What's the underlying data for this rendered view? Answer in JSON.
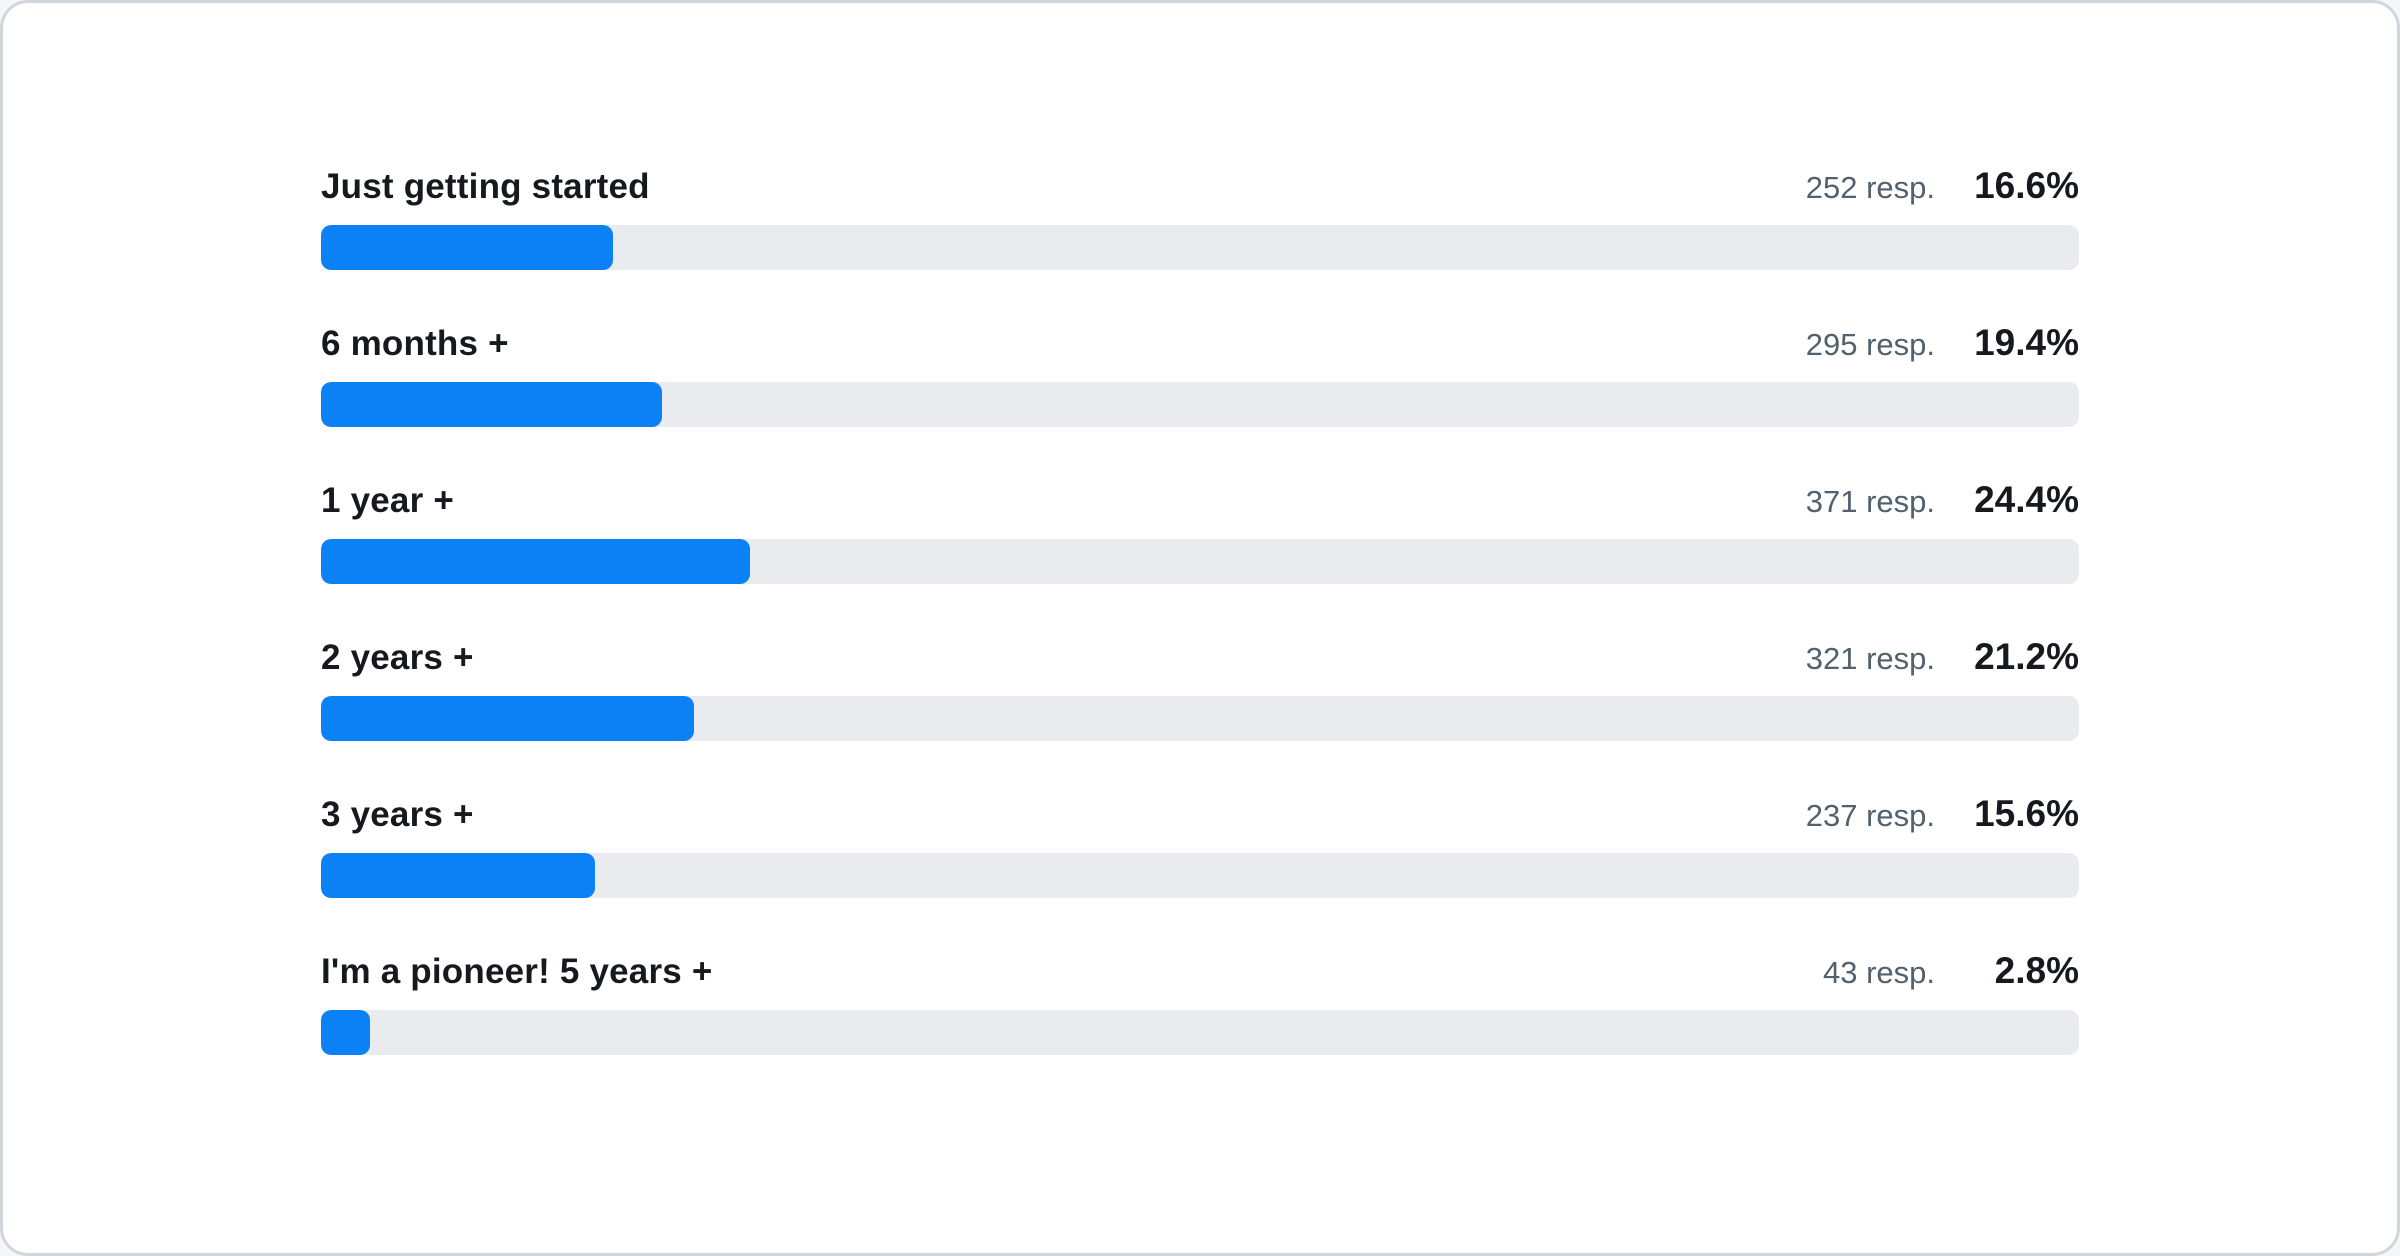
{
  "colors": {
    "bar_fill": "#0b81f5",
    "bar_track": "#e9ebee",
    "label_text": "#16191d",
    "muted_text": "#52616e",
    "card_border": "#cfd6dc",
    "card_background": "#ffffff"
  },
  "chart_data": {
    "type": "bar",
    "orientation": "horizontal",
    "title": "",
    "xlabel": "",
    "ylabel": "",
    "xlim": [
      0,
      100
    ],
    "unit": "%",
    "categories": [
      "Just getting started",
      "6 months +",
      "1 year +",
      "2 years +",
      "3 years +",
      "I'm a pioneer! 5 years +"
    ],
    "values": [
      16.6,
      19.4,
      24.4,
      21.2,
      15.6,
      2.8
    ],
    "respondent_counts": [
      252,
      295,
      371,
      321,
      237,
      43
    ],
    "rows": [
      {
        "label": "Just getting started",
        "responses_label": "252 resp.",
        "percent_label": "16.6%",
        "percent": 16.6
      },
      {
        "label": "6 months +",
        "responses_label": "295 resp.",
        "percent_label": "19.4%",
        "percent": 19.4
      },
      {
        "label": "1 year +",
        "responses_label": "371 resp.",
        "percent_label": "24.4%",
        "percent": 24.4
      },
      {
        "label": "2 years +",
        "responses_label": "321 resp.",
        "percent_label": "21.2%",
        "percent": 21.2
      },
      {
        "label": "3 years +",
        "responses_label": "237 resp.",
        "percent_label": "15.6%",
        "percent": 15.6
      },
      {
        "label": "I'm a pioneer! 5 years +",
        "responses_label": "43 resp.",
        "percent_label": "2.8%",
        "percent": 2.8
      }
    ]
  }
}
